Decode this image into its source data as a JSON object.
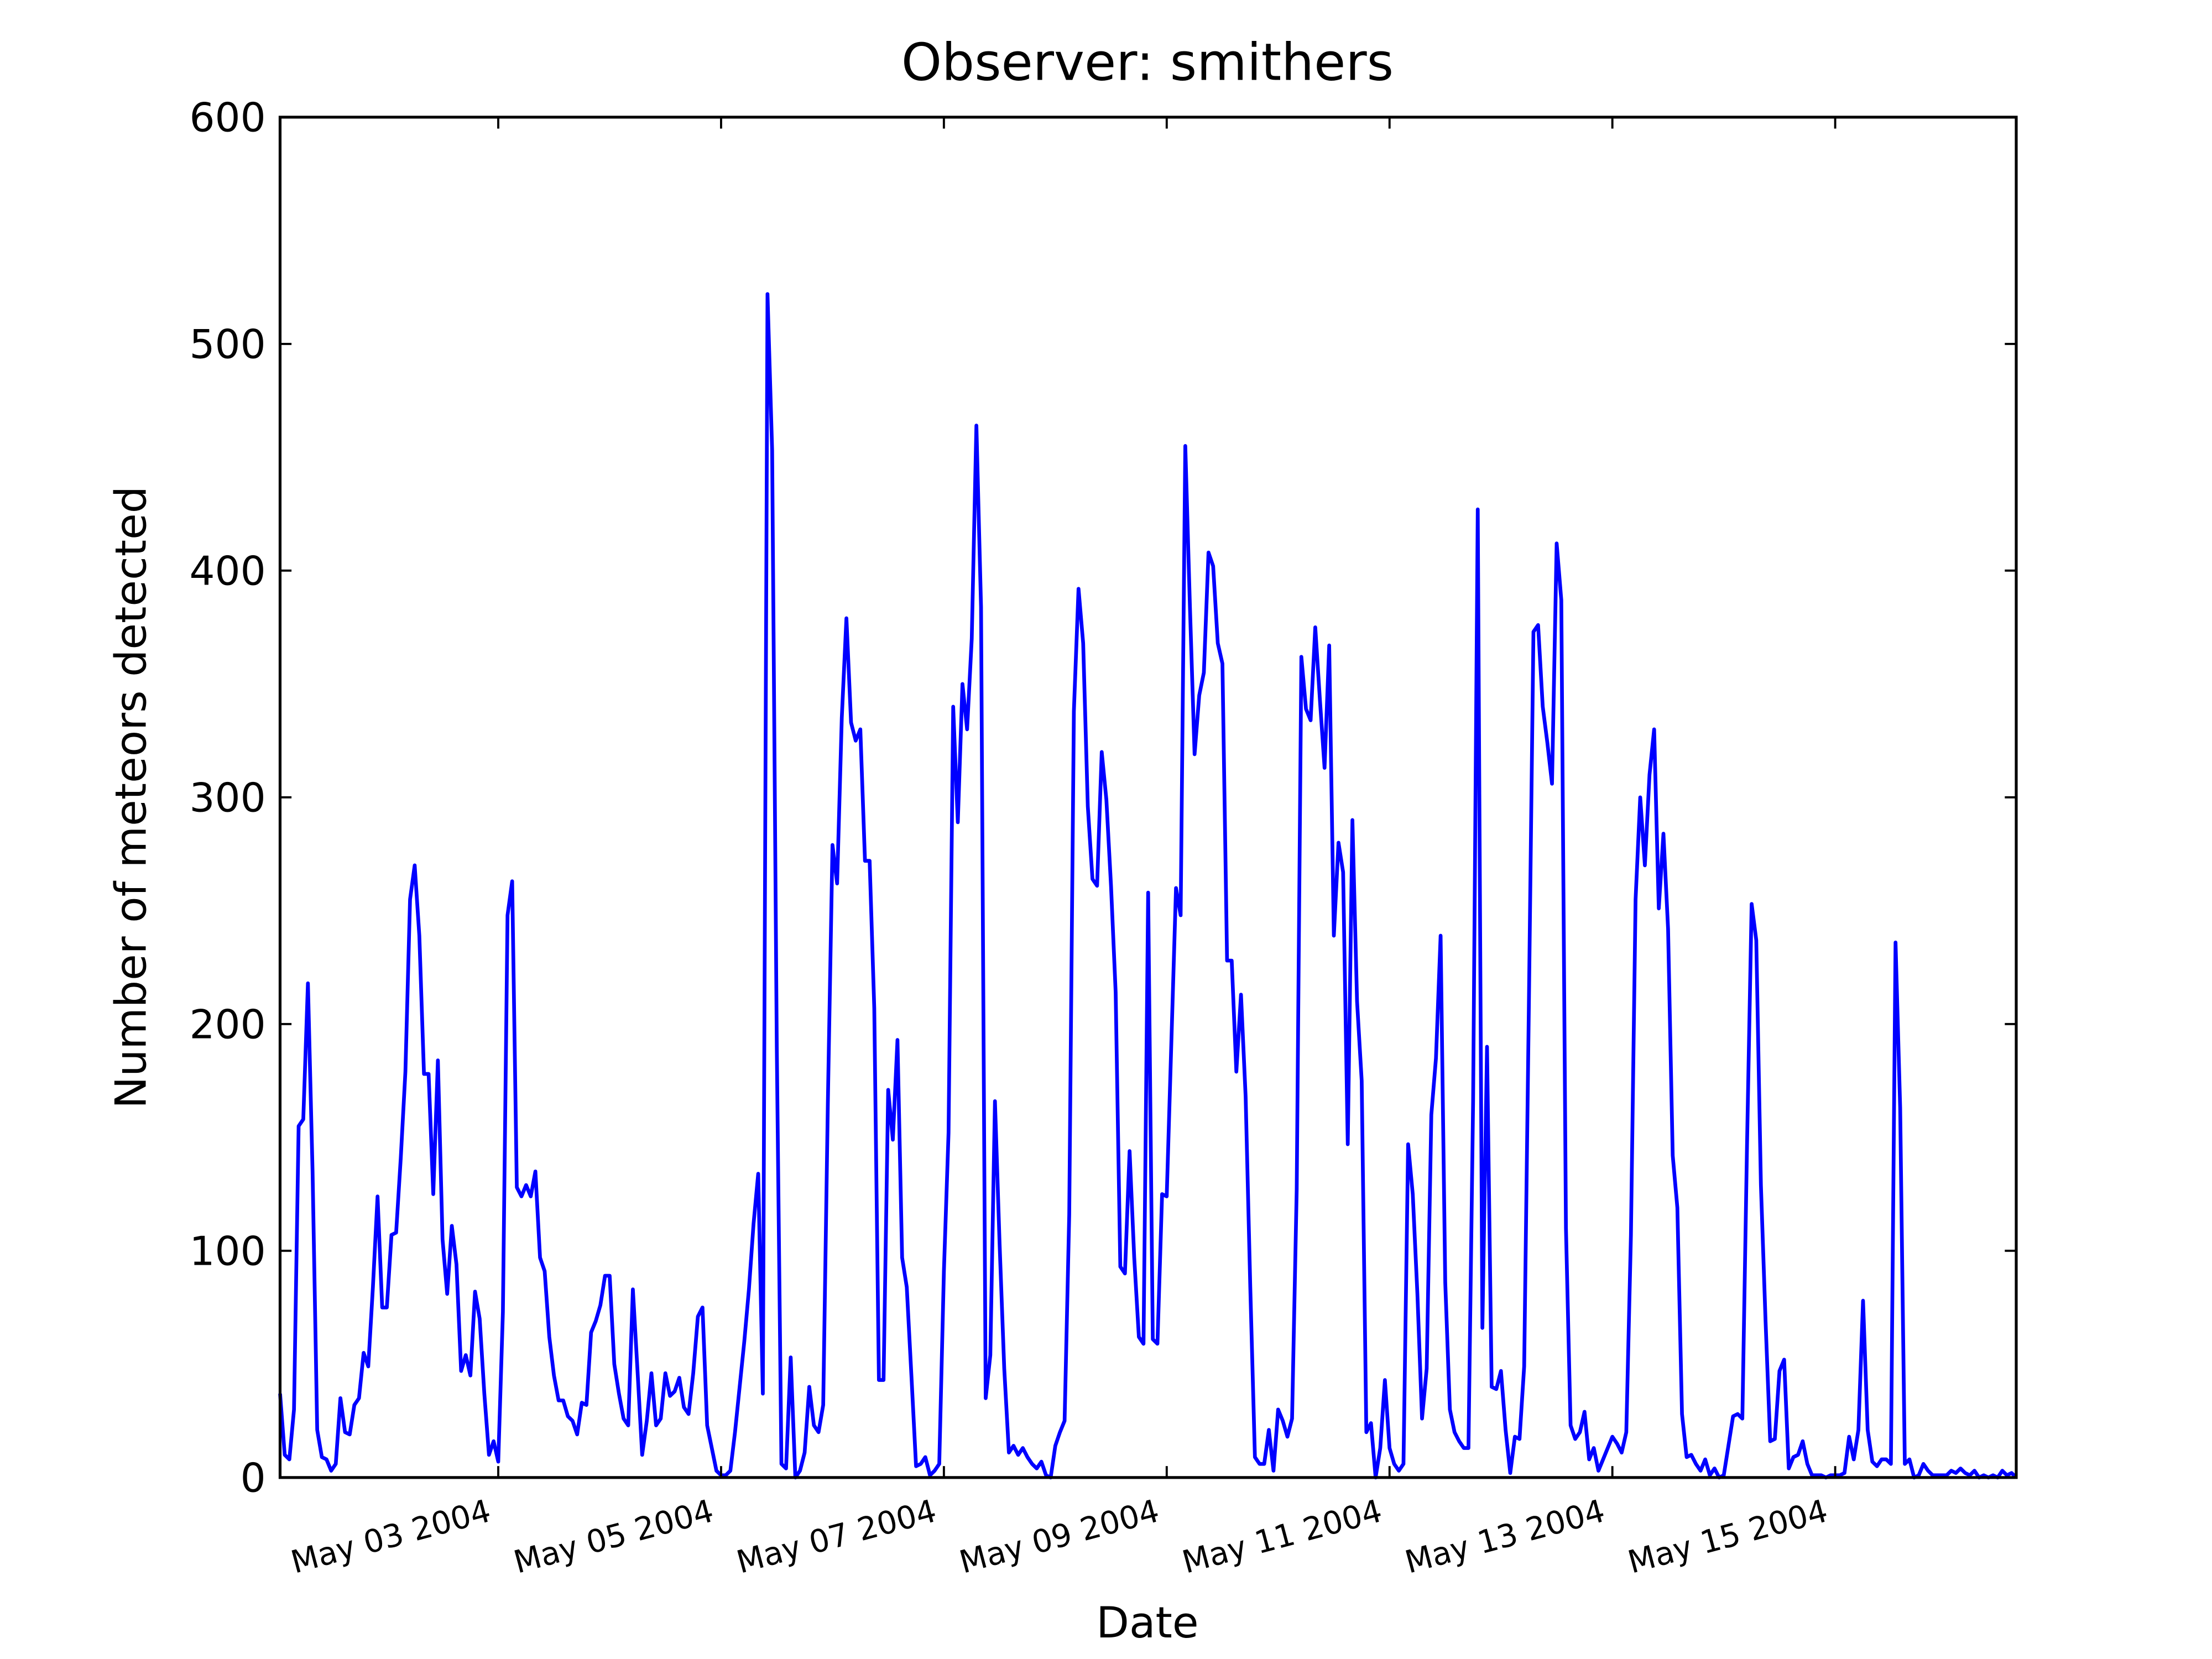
{
  "chart_data": {
    "type": "line",
    "title": "Observer: smithers",
    "xlabel": "Date",
    "ylabel": "Number of meteors detected",
    "color": "#0000ff",
    "xlim": [
      "2004-05-01 01:00",
      "2004-05-16 15:00"
    ],
    "xticks": [
      {
        "value": "2004-05-03 00:00",
        "label": "May 03 2004"
      },
      {
        "value": "2004-05-05 00:00",
        "label": "May 05 2004"
      },
      {
        "value": "2004-05-07 00:00",
        "label": "May 07 2004"
      },
      {
        "value": "2004-05-09 00:00",
        "label": "May 09 2004"
      },
      {
        "value": "2004-05-11 00:00",
        "label": "May 11 2004"
      },
      {
        "value": "2004-05-13 00:00",
        "label": "May 13 2004"
      },
      {
        "value": "2004-05-15 00:00",
        "label": "May 15 2004"
      }
    ],
    "ylim": [
      0,
      600
    ],
    "yticks": [
      0,
      100,
      200,
      300,
      400,
      500,
      600
    ],
    "x": [
      "2004-05-01 01:00",
      "2004-05-01 02:00",
      "2004-05-01 03:00",
      "2004-05-01 04:00",
      "2004-05-01 05:00",
      "2004-05-01 06:00",
      "2004-05-01 07:00",
      "2004-05-01 08:00",
      "2004-05-01 09:00",
      "2004-05-01 10:00",
      "2004-05-01 11:00",
      "2004-05-01 12:00",
      "2004-05-01 13:00",
      "2004-05-01 14:00",
      "2004-05-01 15:00",
      "2004-05-01 16:00",
      "2004-05-01 17:00",
      "2004-05-01 18:00",
      "2004-05-01 19:00",
      "2004-05-01 20:00",
      "2004-05-01 21:00",
      "2004-05-01 22:00",
      "2004-05-01 23:00",
      "2004-05-02 00:00",
      "2004-05-02 01:00",
      "2004-05-02 02:00",
      "2004-05-02 03:00",
      "2004-05-02 04:00",
      "2004-05-02 05:00",
      "2004-05-02 06:00",
      "2004-05-02 07:00",
      "2004-05-02 08:00",
      "2004-05-02 09:00",
      "2004-05-02 10:00",
      "2004-05-02 11:00",
      "2004-05-02 12:00",
      "2004-05-02 13:00",
      "2004-05-02 14:00",
      "2004-05-02 15:00",
      "2004-05-02 16:00",
      "2004-05-02 17:00",
      "2004-05-02 18:00",
      "2004-05-02 19:00",
      "2004-05-02 20:00",
      "2004-05-02 21:00",
      "2004-05-02 22:00",
      "2004-05-02 23:00",
      "2004-05-03 00:00",
      "2004-05-03 01:00",
      "2004-05-03 02:00",
      "2004-05-03 03:00",
      "2004-05-03 04:00",
      "2004-05-03 05:00",
      "2004-05-03 06:00",
      "2004-05-03 07:00",
      "2004-05-03 08:00",
      "2004-05-03 09:00",
      "2004-05-03 10:00",
      "2004-05-03 11:00",
      "2004-05-03 12:00",
      "2004-05-03 13:00",
      "2004-05-03 14:00",
      "2004-05-03 15:00",
      "2004-05-03 16:00",
      "2004-05-03 17:00",
      "2004-05-03 18:00",
      "2004-05-03 19:00",
      "2004-05-03 20:00",
      "2004-05-03 21:00",
      "2004-05-03 22:00",
      "2004-05-03 23:00",
      "2004-05-04 00:00",
      "2004-05-04 01:00",
      "2004-05-04 02:00",
      "2004-05-04 03:00",
      "2004-05-04 04:00",
      "2004-05-04 05:00",
      "2004-05-04 06:00",
      "2004-05-04 07:00",
      "2004-05-04 08:00",
      "2004-05-04 09:00",
      "2004-05-04 10:00",
      "2004-05-04 11:00",
      "2004-05-04 12:00",
      "2004-05-04 13:00",
      "2004-05-04 14:00",
      "2004-05-04 15:00",
      "2004-05-04 16:00",
      "2004-05-04 17:00",
      "2004-05-04 18:00",
      "2004-05-04 19:00",
      "2004-05-04 20:00",
      "2004-05-04 21:00",
      "2004-05-04 22:00",
      "2004-05-04 23:00",
      "2004-05-05 00:00",
      "2004-05-05 01:00",
      "2004-05-05 02:00",
      "2004-05-05 03:00",
      "2004-05-05 04:00",
      "2004-05-05 05:00",
      "2004-05-05 06:00",
      "2004-05-05 07:00",
      "2004-05-05 08:00",
      "2004-05-05 09:00",
      "2004-05-05 10:00",
      "2004-05-05 11:00",
      "2004-05-05 12:00",
      "2004-05-05 13:00",
      "2004-05-05 14:00",
      "2004-05-05 15:00",
      "2004-05-05 16:00",
      "2004-05-05 17:00",
      "2004-05-05 18:00",
      "2004-05-05 19:00",
      "2004-05-05 20:00",
      "2004-05-05 21:00",
      "2004-05-05 22:00",
      "2004-05-05 23:00",
      "2004-05-06 00:00",
      "2004-05-06 01:00",
      "2004-05-06 02:00",
      "2004-05-06 03:00",
      "2004-05-06 04:00",
      "2004-05-06 05:00",
      "2004-05-06 06:00",
      "2004-05-06 07:00",
      "2004-05-06 08:00",
      "2004-05-06 09:00",
      "2004-05-06 10:00",
      "2004-05-06 11:00",
      "2004-05-06 12:00",
      "2004-05-06 13:00",
      "2004-05-06 14:00",
      "2004-05-06 15:00",
      "2004-05-06 16:00",
      "2004-05-06 17:00",
      "2004-05-06 18:00",
      "2004-05-06 19:00",
      "2004-05-06 20:00",
      "2004-05-06 21:00",
      "2004-05-06 22:00",
      "2004-05-06 23:00",
      "2004-05-07 00:00",
      "2004-05-07 01:00",
      "2004-05-07 02:00",
      "2004-05-07 03:00",
      "2004-05-07 04:00",
      "2004-05-07 05:00",
      "2004-05-07 06:00",
      "2004-05-07 07:00",
      "2004-05-07 08:00",
      "2004-05-07 09:00",
      "2004-05-07 10:00",
      "2004-05-07 11:00",
      "2004-05-07 12:00",
      "2004-05-07 13:00",
      "2004-05-07 14:00",
      "2004-05-07 15:00",
      "2004-05-07 16:00",
      "2004-05-07 17:00",
      "2004-05-07 18:00",
      "2004-05-07 19:00",
      "2004-05-07 20:00",
      "2004-05-07 21:00",
      "2004-05-07 22:00",
      "2004-05-07 23:00",
      "2004-05-08 00:00",
      "2004-05-08 01:00",
      "2004-05-08 02:00",
      "2004-05-08 03:00",
      "2004-05-08 04:00",
      "2004-05-08 05:00",
      "2004-05-08 06:00",
      "2004-05-08 07:00",
      "2004-05-08 08:00",
      "2004-05-08 09:00",
      "2004-05-08 10:00",
      "2004-05-08 11:00",
      "2004-05-08 12:00",
      "2004-05-08 13:00",
      "2004-05-08 14:00",
      "2004-05-08 15:00",
      "2004-05-08 16:00",
      "2004-05-08 17:00",
      "2004-05-08 18:00",
      "2004-05-08 19:00",
      "2004-05-08 20:00",
      "2004-05-08 21:00",
      "2004-05-08 22:00",
      "2004-05-08 23:00",
      "2004-05-09 00:00",
      "2004-05-09 01:00",
      "2004-05-09 02:00",
      "2004-05-09 03:00",
      "2004-05-09 04:00",
      "2004-05-09 05:00",
      "2004-05-09 06:00",
      "2004-05-09 07:00",
      "2004-05-09 08:00",
      "2004-05-09 09:00",
      "2004-05-09 10:00",
      "2004-05-09 11:00",
      "2004-05-09 12:00",
      "2004-05-09 13:00",
      "2004-05-09 14:00",
      "2004-05-09 15:00",
      "2004-05-09 16:00",
      "2004-05-09 17:00",
      "2004-05-09 18:00",
      "2004-05-09 19:00",
      "2004-05-09 20:00",
      "2004-05-09 21:00",
      "2004-05-09 22:00",
      "2004-05-09 23:00",
      "2004-05-10 00:00",
      "2004-05-10 01:00",
      "2004-05-10 02:00",
      "2004-05-10 03:00",
      "2004-05-10 04:00",
      "2004-05-10 05:00",
      "2004-05-10 06:00",
      "2004-05-10 07:00",
      "2004-05-10 08:00",
      "2004-05-10 09:00",
      "2004-05-10 10:00",
      "2004-05-10 11:00",
      "2004-05-10 12:00",
      "2004-05-10 13:00",
      "2004-05-10 14:00",
      "2004-05-10 15:00",
      "2004-05-10 16:00",
      "2004-05-10 17:00",
      "2004-05-10 18:00",
      "2004-05-10 19:00",
      "2004-05-10 20:00",
      "2004-05-10 21:00",
      "2004-05-10 22:00",
      "2004-05-10 23:00",
      "2004-05-11 00:00",
      "2004-05-11 01:00",
      "2004-05-11 02:00",
      "2004-05-11 03:00",
      "2004-05-11 04:00",
      "2004-05-11 05:00",
      "2004-05-11 06:00",
      "2004-05-11 07:00",
      "2004-05-11 08:00",
      "2004-05-11 09:00",
      "2004-05-11 10:00",
      "2004-05-11 11:00",
      "2004-05-11 12:00",
      "2004-05-11 13:00",
      "2004-05-11 14:00",
      "2004-05-11 15:00",
      "2004-05-11 16:00",
      "2004-05-11 17:00",
      "2004-05-11 18:00",
      "2004-05-11 19:00",
      "2004-05-11 20:00",
      "2004-05-11 21:00",
      "2004-05-11 22:00",
      "2004-05-11 23:00",
      "2004-05-12 00:00",
      "2004-05-12 01:00",
      "2004-05-12 02:00",
      "2004-05-12 03:00",
      "2004-05-12 04:00",
      "2004-05-12 05:00",
      "2004-05-12 06:00",
      "2004-05-12 07:00",
      "2004-05-12 08:00",
      "2004-05-12 09:00",
      "2004-05-12 10:00",
      "2004-05-12 11:00",
      "2004-05-12 12:00",
      "2004-05-12 13:00",
      "2004-05-12 14:00",
      "2004-05-12 15:00",
      "2004-05-12 16:00",
      "2004-05-12 17:00",
      "2004-05-12 18:00",
      "2004-05-12 19:00",
      "2004-05-12 20:00",
      "2004-05-12 21:00",
      "2004-05-12 22:00",
      "2004-05-12 23:00",
      "2004-05-13 00:00",
      "2004-05-13 01:00",
      "2004-05-13 02:00",
      "2004-05-13 03:00",
      "2004-05-13 04:00",
      "2004-05-13 05:00",
      "2004-05-13 06:00",
      "2004-05-13 07:00",
      "2004-05-13 08:00",
      "2004-05-13 09:00",
      "2004-05-13 10:00",
      "2004-05-13 11:00",
      "2004-05-13 12:00",
      "2004-05-13 13:00",
      "2004-05-13 14:00",
      "2004-05-13 15:00",
      "2004-05-13 16:00",
      "2004-05-13 17:00",
      "2004-05-13 18:00",
      "2004-05-13 19:00",
      "2004-05-13 20:00",
      "2004-05-13 21:00",
      "2004-05-13 22:00",
      "2004-05-13 23:00",
      "2004-05-14 00:00",
      "2004-05-14 01:00",
      "2004-05-14 02:00",
      "2004-05-14 03:00",
      "2004-05-14 04:00",
      "2004-05-14 05:00",
      "2004-05-14 06:00",
      "2004-05-14 07:00",
      "2004-05-14 08:00",
      "2004-05-14 09:00",
      "2004-05-14 10:00",
      "2004-05-14 11:00",
      "2004-05-14 12:00",
      "2004-05-14 13:00",
      "2004-05-14 14:00",
      "2004-05-14 15:00",
      "2004-05-14 16:00",
      "2004-05-14 17:00",
      "2004-05-14 18:00",
      "2004-05-14 19:00",
      "2004-05-14 20:00",
      "2004-05-14 21:00",
      "2004-05-14 22:00",
      "2004-05-14 23:00",
      "2004-05-15 00:00",
      "2004-05-15 01:00",
      "2004-05-15 02:00",
      "2004-05-15 03:00",
      "2004-05-15 04:00",
      "2004-05-15 05:00",
      "2004-05-15 06:00",
      "2004-05-15 07:00",
      "2004-05-15 08:00",
      "2004-05-15 09:00",
      "2004-05-15 10:00",
      "2004-05-15 11:00",
      "2004-05-15 12:00",
      "2004-05-15 13:00",
      "2004-05-15 14:00",
      "2004-05-15 15:00",
      "2004-05-15 16:00",
      "2004-05-15 17:00",
      "2004-05-15 18:00",
      "2004-05-15 19:00",
      "2004-05-15 20:00",
      "2004-05-15 21:00",
      "2004-05-15 22:00",
      "2004-05-15 23:00",
      "2004-05-16 00:00",
      "2004-05-16 01:00",
      "2004-05-16 02:00",
      "2004-05-16 03:00",
      "2004-05-16 04:00",
      "2004-05-16 05:00",
      "2004-05-16 06:00",
      "2004-05-16 07:00",
      "2004-05-16 08:00",
      "2004-05-16 09:00",
      "2004-05-16 10:00",
      "2004-05-16 11:00",
      "2004-05-16 12:00",
      "2004-05-16 13:00",
      "2004-05-16 14:00",
      "2004-05-16 15:00"
    ],
    "values": [
      37,
      10,
      8,
      30,
      155,
      158,
      218,
      135,
      21,
      9,
      8,
      3,
      6,
      35,
      20,
      19,
      32,
      35,
      55,
      49,
      84,
      124,
      75,
      75,
      107,
      108,
      141,
      179,
      255,
      270,
      239,
      178,
      178,
      125,
      184,
      105,
      81,
      111,
      94,
      47,
      54,
      45,
      82,
      70,
      37,
      10,
      16,
      7,
      73,
      248,
      263,
      128,
      124,
      129,
      124,
      135,
      97,
      91,
      62,
      45,
      34,
      34,
      27,
      25,
      19,
      33,
      32,
      64,
      69,
      76,
      89,
      89,
      50,
      37,
      26,
      23,
      83,
      47,
      10,
      25,
      46,
      23,
      26,
      46,
      36,
      38,
      44,
      31,
      28,
      46,
      71,
      75,
      23,
      13,
      3,
      1,
      1,
      3,
      20,
      40,
      60,
      83,
      112,
      134,
      37,
      522,
      453,
      190,
      6,
      4,
      53,
      0,
      3,
      11,
      40,
      23,
      20,
      32,
      165,
      279,
      262,
      335,
      379,
      333,
      325,
      330,
      272,
      272,
      207,
      43,
      43,
      171,
      149,
      193,
      97,
      84,
      45,
      5,
      6,
      9,
      1,
      3,
      6,
      91,
      152,
      340,
      289,
      350,
      330,
      370,
      464,
      384,
      35,
      54,
      166,
      103,
      48,
      11,
      14,
      10,
      13,
      9,
      6,
      4,
      7,
      1,
      0,
      14,
      20,
      25,
      116,
      338,
      392,
      368,
      296,
      264,
      261,
      320,
      299,
      261,
      214,
      93,
      90,
      144,
      97,
      62,
      59,
      258,
      61,
      59,
      125,
      124,
      192,
      260,
      248,
      455,
      384,
      319,
      345,
      355,
      408,
      402,
      368,
      359,
      228,
      228,
      179,
      213,
      168,
      84,
      9,
      6,
      6,
      21,
      3,
      30,
      25,
      18,
      26,
      127,
      362,
      339,
      334,
      375,
      343,
      313,
      367,
      239,
      280,
      267,
      147,
      290,
      210,
      175,
      20,
      24,
      0,
      13,
      43,
      13,
      6,
      3,
      6,
      147,
      125,
      81,
      26,
      48,
      160,
      185,
      239,
      86,
      30,
      20,
      16,
      13,
      13,
      166,
      427,
      66,
      190,
      40,
      39,
      47,
      21,
      2,
      18,
      17,
      49,
      206,
      373,
      376,
      340,
      324,
      306,
      412,
      387,
      110,
      23,
      17,
      20,
      29,
      8,
      13,
      3,
      8,
      13,
      18,
      15,
      11,
      20,
      107,
      255,
      300,
      270,
      310,
      330,
      251,
      284,
      242,
      142,
      119,
      28,
      9,
      10,
      6,
      3,
      8,
      1,
      4,
      0,
      1,
      14,
      27,
      28,
      26,
      146,
      253,
      237,
      129,
      69,
      16,
      17,
      47,
      52,
      4,
      9,
      10,
      16,
      6,
      1,
      1,
      1,
      0,
      1,
      1,
      1,
      2,
      18,
      8,
      21,
      78,
      21,
      7,
      5,
      8,
      8,
      6,
      236,
      163,
      6,
      8,
      0,
      1,
      6,
      3,
      1,
      1,
      1,
      1,
      3,
      2,
      4,
      2,
      1,
      3,
      0,
      1,
      0,
      1,
      0,
      3,
      1,
      2,
      0
    ]
  }
}
